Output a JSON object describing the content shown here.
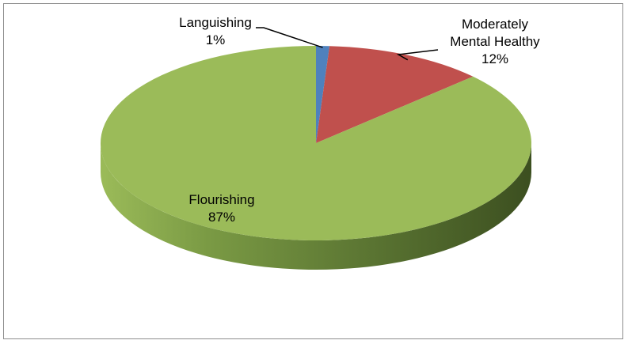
{
  "chart_data": {
    "type": "pie",
    "title": "",
    "style": "3d",
    "legend": "none",
    "slices": [
      {
        "category": "Languishing",
        "value": 1,
        "label_lines": [
          "Languishing",
          "1%"
        ],
        "color": "#4f81bd",
        "side_color": "#3b6190"
      },
      {
        "category": "Moderately Mental Healthy",
        "value": 12,
        "label_lines": [
          "Moderately",
          "Mental Healthy",
          "12%"
        ],
        "color": "#c0504d",
        "side_color": "#8e3836"
      },
      {
        "category": "Flourishing",
        "value": 87,
        "label_lines": [
          "Flourishing",
          "87%"
        ],
        "color": "#9bbb59",
        "side_color": "#6a8a3c"
      }
    ]
  }
}
